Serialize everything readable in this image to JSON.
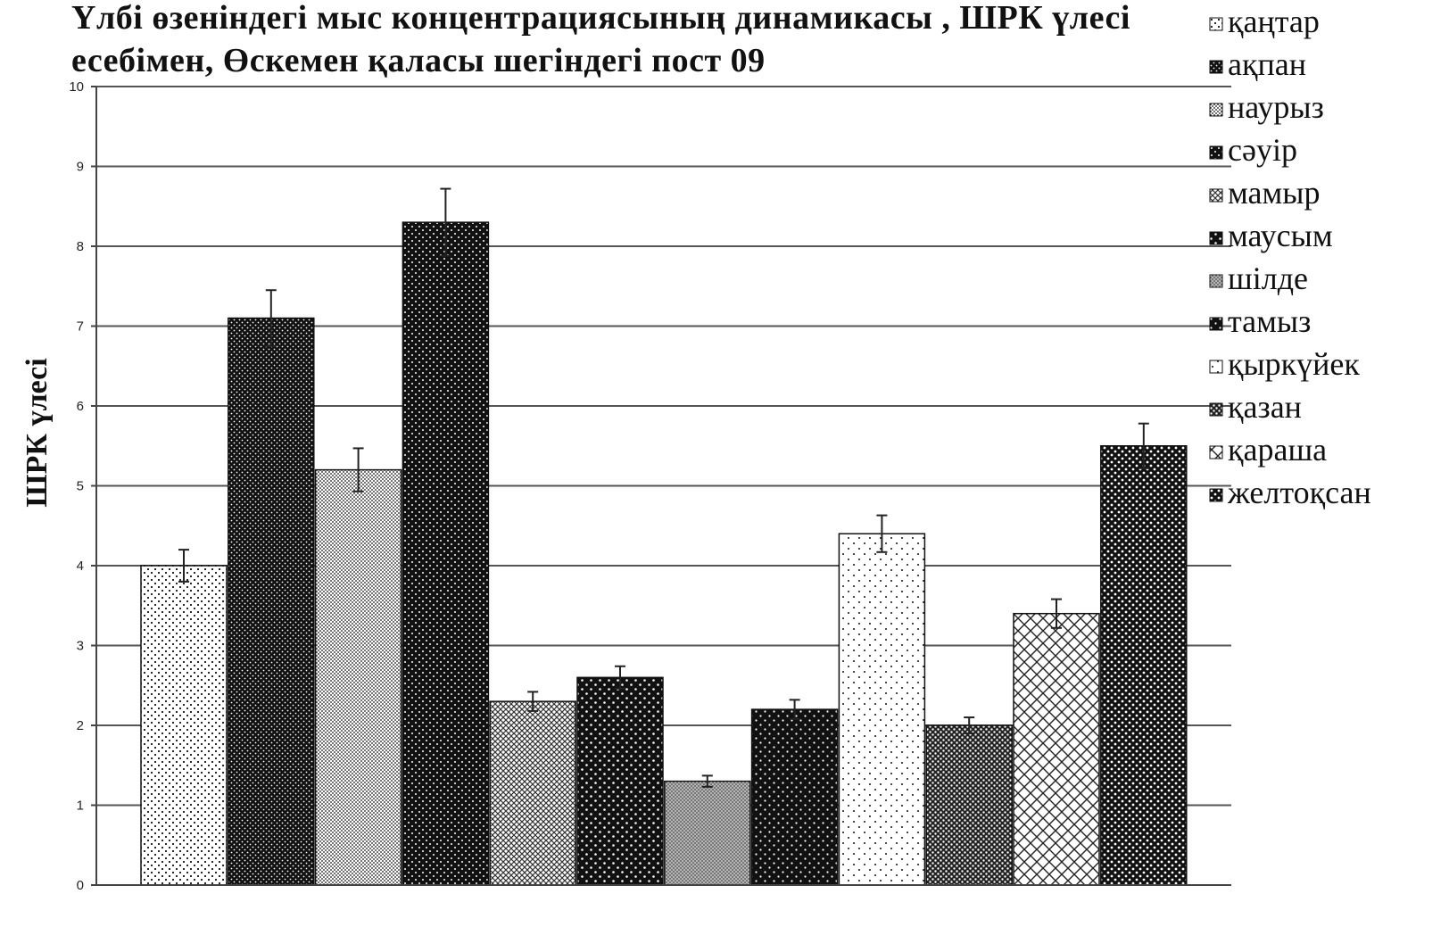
{
  "chart_data": {
    "type": "bar",
    "title_line1": "Үлбі өзеніндегі мыс концентрациясының  динамикасы , ШРК үлесі",
    "title_line2": "есебімен,  Өскемен қаласы  шегіндегі пост 09",
    "xlabel": "",
    "ylabel": "ШРК үлесі",
    "ylim": [
      0,
      10
    ],
    "yticks": [
      0,
      1,
      2,
      3,
      4,
      5,
      6,
      7,
      8,
      9,
      10
    ],
    "grid": true,
    "legend_position": "right",
    "series": [
      {
        "name": "қаңтар",
        "value": 4.0,
        "error": 0.2
      },
      {
        "name": "ақпан",
        "value": 7.1,
        "error": 0.35
      },
      {
        "name": "наурыз",
        "value": 5.2,
        "error": 0.27
      },
      {
        "name": "сәуір",
        "value": 8.3,
        "error": 0.42
      },
      {
        "name": "мамыр",
        "value": 2.3,
        "error": 0.12
      },
      {
        "name": "маусым",
        "value": 2.6,
        "error": 0.14
      },
      {
        "name": "шілде",
        "value": 1.3,
        "error": 0.07
      },
      {
        "name": "тамыз",
        "value": 2.2,
        "error": 0.12
      },
      {
        "name": "қыркүйек",
        "value": 4.4,
        "error": 0.23
      },
      {
        "name": "қазан",
        "value": 2.0,
        "error": 0.1
      },
      {
        "name": "қараша",
        "value": 3.4,
        "error": 0.18
      },
      {
        "name": "желтоқсан",
        "value": 5.5,
        "error": 0.28
      }
    ]
  }
}
